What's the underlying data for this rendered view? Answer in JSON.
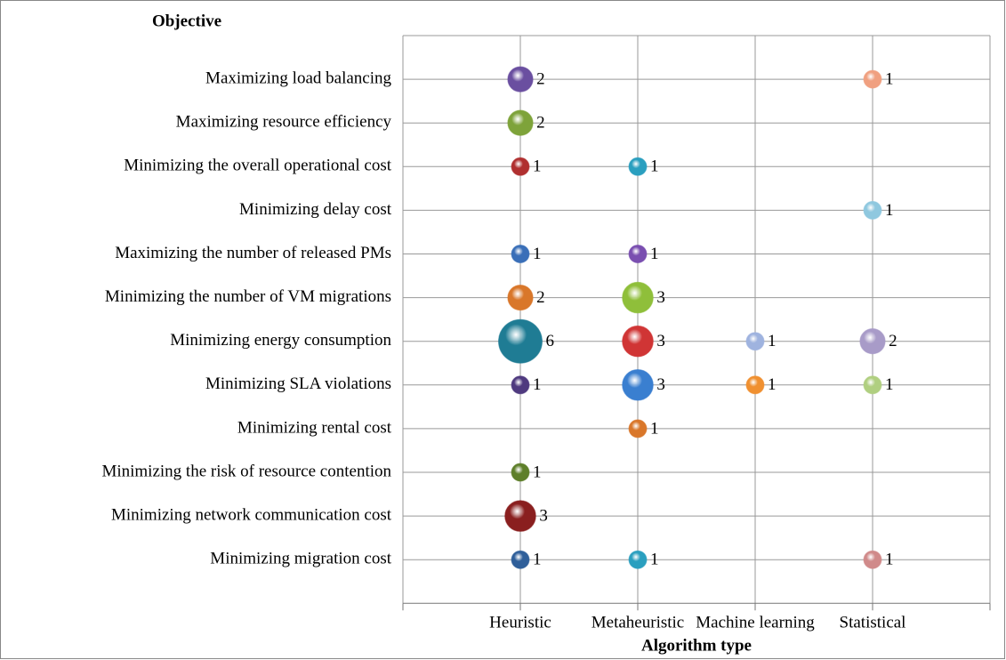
{
  "chart_data": {
    "type": "bubble",
    "title": "Objective",
    "x_label": "Algorithm type",
    "categories": [
      "Maximizing load balancing",
      "Maximizing resource efficiency",
      "Minimizing the overall operational cost",
      "Minimizing delay cost",
      "Maximizing the number of released PMs",
      "Minimizing the number of VM migrations",
      "Minimizing energy consumption",
      "Minimizing SLA violations",
      "Minimizing rental cost",
      "Minimizing the risk of resource contention",
      "Minimizing network communication cost",
      "Minimizing migration cost"
    ],
    "series": [
      {
        "name": "Heuristic",
        "values": [
          2,
          2,
          1,
          null,
          1,
          2,
          6,
          1,
          null,
          1,
          3,
          1
        ],
        "colors": [
          "#6a4fa0",
          "#7ea33a",
          "#b03030",
          null,
          "#3a6fb8",
          "#d9772a",
          "#1f7c94",
          "#4f3a7f",
          null,
          "#5e7f2a",
          "#8a1f1f",
          "#2f5f9a"
        ]
      },
      {
        "name": "Metaheuristic",
        "values": [
          null,
          null,
          1,
          null,
          1,
          3,
          3,
          3,
          1,
          null,
          null,
          1
        ],
        "colors": [
          null,
          null,
          "#2a9fbf",
          null,
          "#7a4fb0",
          "#8fbf3a",
          "#d03535",
          "#3a7fd0",
          "#d9772a",
          null,
          null,
          "#2a9fbf"
        ]
      },
      {
        "name": "Machine learning",
        "values": [
          null,
          null,
          null,
          null,
          null,
          null,
          1,
          1,
          null,
          null,
          null,
          null
        ],
        "colors": [
          null,
          null,
          null,
          null,
          null,
          null,
          "#9fb3df",
          "#f09030",
          null,
          null,
          null,
          null
        ]
      },
      {
        "name": "Statistical",
        "values": [
          1,
          null,
          null,
          1,
          null,
          null,
          2,
          1,
          null,
          null,
          null,
          1
        ],
        "colors": [
          "#f0a080",
          null,
          null,
          "#8fc8df",
          null,
          null,
          "#a89bc8",
          "#b0cf80",
          null,
          null,
          null,
          "#d08a8a"
        ]
      }
    ],
    "grid": true
  }
}
